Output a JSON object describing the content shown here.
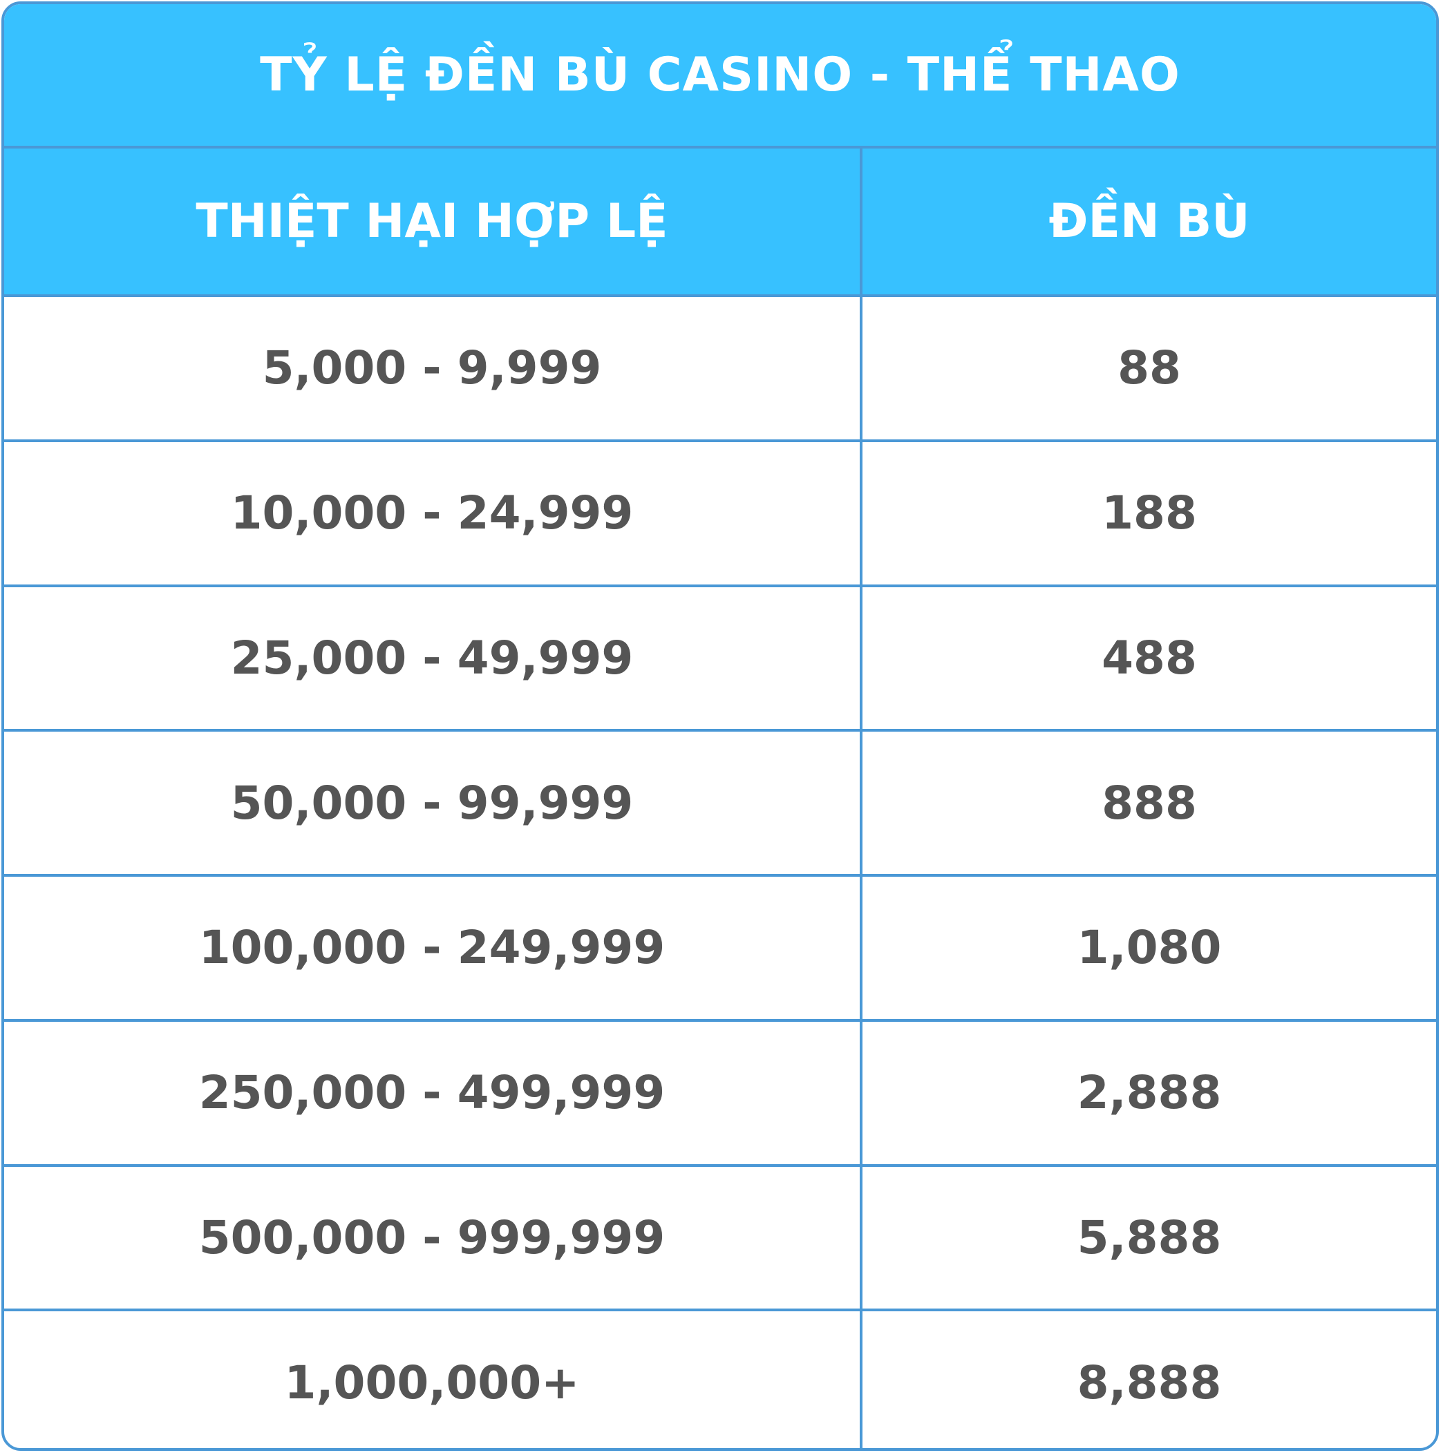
{
  "table": {
    "title": "TỶ LỆ ĐỀN BÙ CASINO - THỂ THAO",
    "headers": [
      "THIỆT HẠI HỢP LỆ",
      "ĐỀN BÙ"
    ],
    "rows": [
      {
        "loss": "5,000 - 9,999",
        "compensation": "88"
      },
      {
        "loss": "10,000 - 24,999",
        "compensation": "188"
      },
      {
        "loss": "25,000 - 49,999",
        "compensation": "488"
      },
      {
        "loss": "50,000 - 99,999",
        "compensation": "888"
      },
      {
        "loss": "100,000 - 249,999",
        "compensation": "1,080"
      },
      {
        "loss": "250,000 - 499,999",
        "compensation": "2,888"
      },
      {
        "loss": "500,000 - 999,999",
        "compensation": "5,888"
      },
      {
        "loss": "1,000,000+",
        "compensation": "8,888"
      }
    ]
  },
  "colors": {
    "header_bg": "#37c1ff",
    "border": "#4a98d6",
    "header_text": "#ffffff",
    "body_text": "#555555"
  }
}
